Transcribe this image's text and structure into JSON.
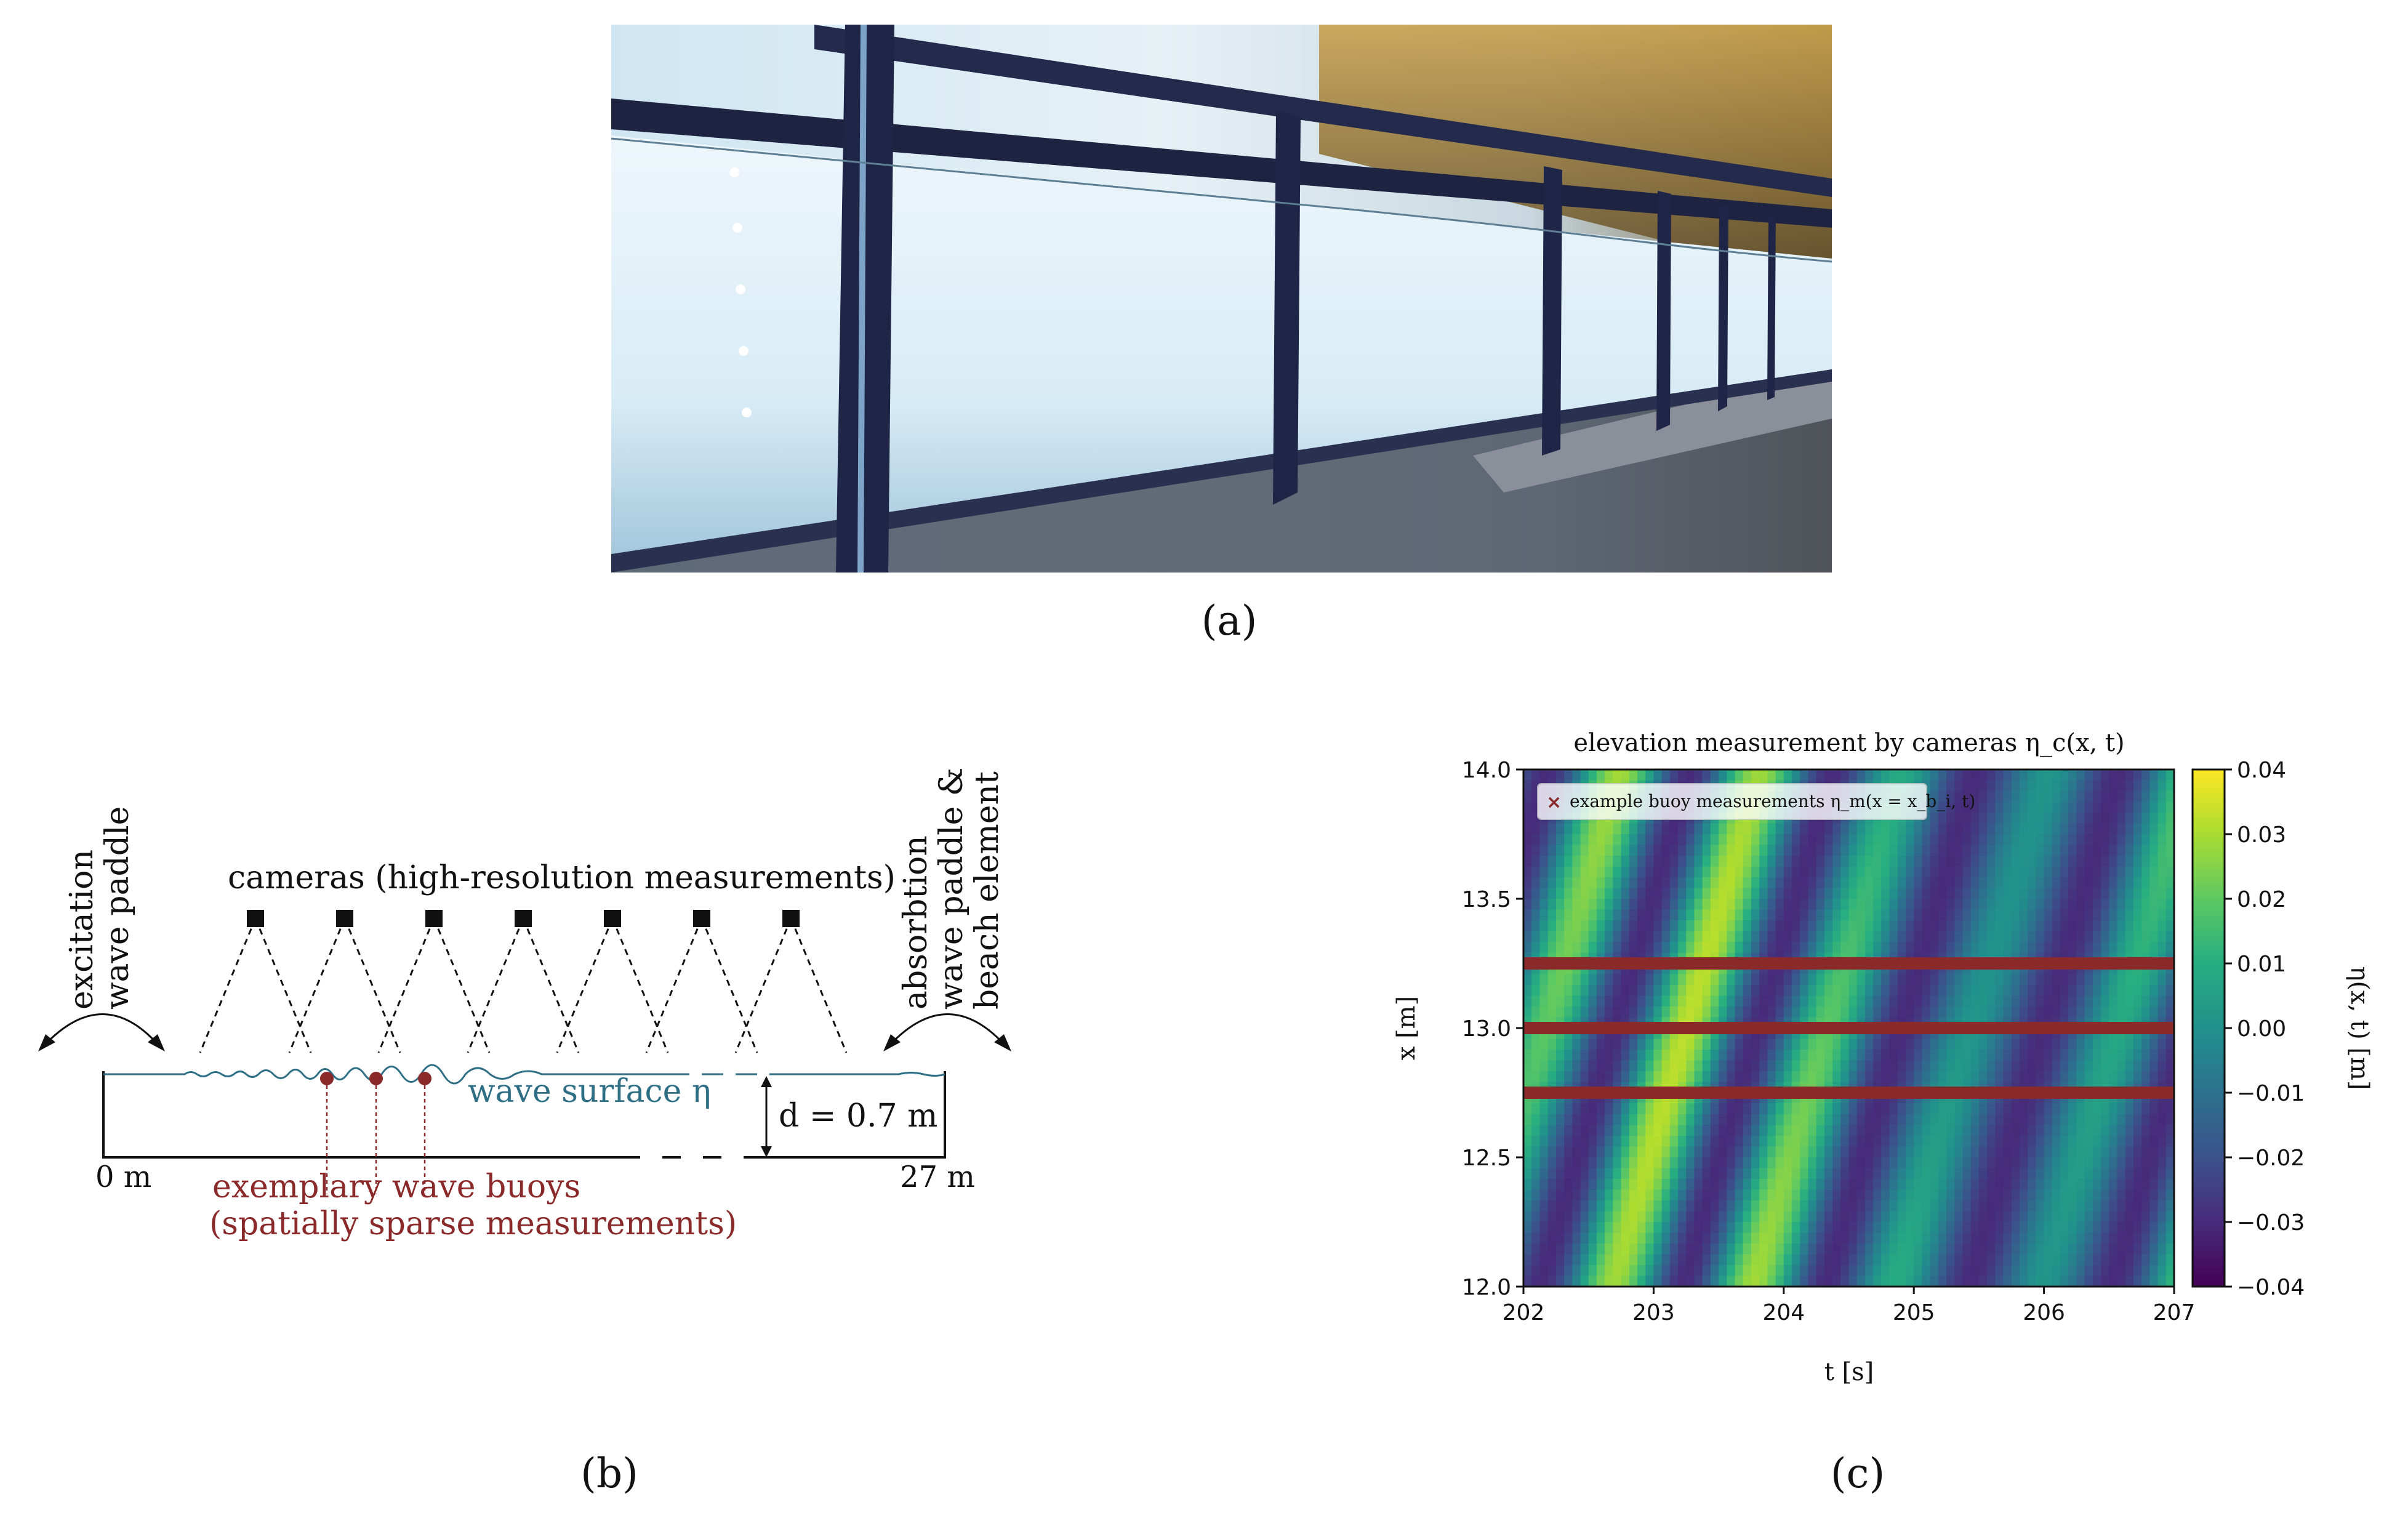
{
  "captions": {
    "a": "(a)",
    "b": "(b)",
    "c": "(c)"
  },
  "schematic": {
    "left_label": [
      "excitation",
      "wave paddle"
    ],
    "right_label": [
      "absorbtion",
      "wave paddle &",
      "beach element"
    ],
    "cameras_label": "cameras (high-resolution measurements)",
    "surface_label": "wave surface η",
    "depth_label": "d = 0.7 m",
    "x_start": "0 m",
    "x_end": "27 m",
    "buoys_label": [
      "exemplary wave buoys",
      "(spatially sparse measurements)"
    ],
    "colors": {
      "surface": "#2f6f86",
      "buoys": "#8b2a2a",
      "ink": "#111111"
    }
  },
  "chart_data": {
    "type": "heatmap",
    "title": "elevation measurement by cameras η_c(x, t)",
    "xlabel": "t [s]",
    "ylabel": "x [m]",
    "colorbar_label": "η(x, t) [m]",
    "xlim": [
      202,
      207
    ],
    "ylim": [
      12.0,
      14.0
    ],
    "xticks": [
      "202",
      "203",
      "204",
      "205",
      "206",
      "207"
    ],
    "yticks": [
      "12.0",
      "12.5",
      "13.0",
      "13.5",
      "14.0"
    ],
    "clim": [
      -0.04,
      0.04
    ],
    "cticks": [
      "0.04",
      "0.03",
      "0.02",
      "0.01",
      "0.00",
      "−0.01",
      "−0.02",
      "−0.03",
      "−0.04"
    ],
    "legend": "example buoy measurements η_m(x = x_b_i, t)",
    "legend_placement": "top-left",
    "buoy_positions": [
      12.75,
      13.0,
      13.25
    ],
    "colormap": "viridis",
    "buoy_color": "#8b2a2a"
  }
}
